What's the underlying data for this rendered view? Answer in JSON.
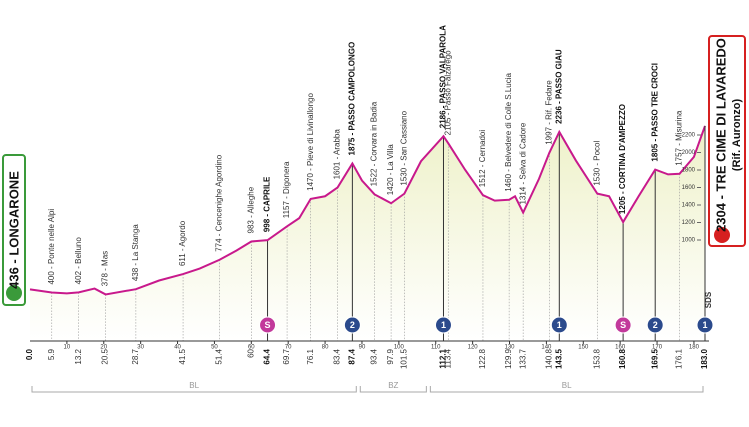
{
  "chart_data": {
    "type": "area",
    "color": "#c8198c",
    "fill": "#eef1c9",
    "xlim": [
      0,
      183
    ],
    "ylim": [
      0,
      2400
    ],
    "x": [
      0,
      5.9,
      10,
      13.2,
      17.5,
      20.5,
      28.7,
      35,
      41.5,
      46,
      51.4,
      56,
      60,
      64.4,
      69.7,
      73,
      76.1,
      80,
      83.4,
      87.4,
      90,
      93.4,
      97.9,
      101.5,
      106,
      112.1,
      113.4,
      118,
      122.8,
      126,
      129.9,
      131.5,
      133.7,
      138,
      140.8,
      143.5,
      148,
      153.8,
      157,
      160.8,
      165,
      169.5,
      173,
      176.1,
      180,
      183
    ],
    "values": [
      436,
      400,
      390,
      402,
      445,
      378,
      438,
      537,
      611,
      674,
      774,
      880,
      983,
      998,
      1157,
      1250,
      1470,
      1500,
      1601,
      1875,
      1680,
      1522,
      1420,
      1530,
      1900,
      2186,
      2105,
      1800,
      1512,
      1450,
      1460,
      1500,
      1314,
      1700,
      1997,
      2236,
      1908,
      1530,
      1500,
      1205,
      1500,
      1805,
      1750,
      1757,
      1950,
      2304
    ],
    "xticks": [
      10,
      20,
      30,
      40,
      50,
      60,
      70,
      80,
      90,
      100,
      110,
      120,
      130,
      140,
      150,
      160,
      170,
      180
    ],
    "yticks": [
      1000,
      1200,
      1400,
      1600,
      1800,
      2000,
      2200
    ],
    "start": {
      "km": {
        "value": 0,
        "label": "0.0"
      },
      "label": "436 - LONGARONE"
    },
    "finish": {
      "km": {
        "value": 183,
        "label": "183.0"
      },
      "label": "2304 - TRE CIME DI LAVAREDO",
      "sublabel": "(Rif. Auronzo)"
    },
    "sds_label": "SDS",
    "waypoints": [
      {
        "km": 5.9,
        "label": "400 - Ponte nelle Alpi",
        "bold": false
      },
      {
        "km": 13.2,
        "label": "402 - Belluno",
        "bold": false
      },
      {
        "km": 20.5,
        "label": "378 - Mas",
        "bold": false
      },
      {
        "km": 28.7,
        "label": "438 - La Stanga",
        "bold": false
      },
      {
        "km": 41.5,
        "label": "611 - Agordo",
        "bold": false
      },
      {
        "km": 51.4,
        "label": "774 - Cencenighe Agordino",
        "bold": false
      },
      {
        "km": 60.0,
        "label": "983 - Alleghe",
        "bold": false
      },
      {
        "km": 64.4,
        "label": "998 - CAPRILE",
        "bold": true
      },
      {
        "km": 69.7,
        "label": "1157 - Digonera",
        "bold": false
      },
      {
        "km": 76.1,
        "label": "1470 - Pieve di Livinallongo",
        "bold": false
      },
      {
        "km": 83.4,
        "label": "1601 - Arabba",
        "bold": false
      },
      {
        "km": 87.4,
        "label": "1875 - PASSO CAMPOLONGO",
        "bold": true
      },
      {
        "km": 93.4,
        "label": "1522 - Corvara in Badia",
        "bold": false
      },
      {
        "km": 97.9,
        "label": "1420 - La Villa",
        "bold": false
      },
      {
        "km": 101.5,
        "label": "1530 - San Cassiano",
        "bold": false
      },
      {
        "km": 112.1,
        "label": "2186 - PASSO VALPAROLA",
        "bold": true
      },
      {
        "km": 113.4,
        "label": "2105 - Passo Falzarego",
        "bold": false
      },
      {
        "km": 122.8,
        "label": "1512 - Cernadoi",
        "bold": false
      },
      {
        "km": 129.9,
        "label": "1460 - Belvedere di Colle S.Lucia",
        "bold": false
      },
      {
        "km": 133.7,
        "label": "1314 - Selva di Cadore",
        "bold": false
      },
      {
        "km": 140.8,
        "label": "1997 - Rif. Fedare",
        "bold": false
      },
      {
        "km": 143.5,
        "label": "2236 - PASSO GIAU",
        "bold": true
      },
      {
        "km": 153.8,
        "label": "1530 - Pocol",
        "bold": false
      },
      {
        "km": 160.8,
        "label": "1205 - CORTINA D'AMPEZZO",
        "bold": true
      },
      {
        "km": 169.5,
        "label": "1805 - PASSO TRE CROCI",
        "bold": true
      },
      {
        "km": 176.1,
        "label": "1757 - Misurina",
        "bold": false
      }
    ],
    "badges": [
      {
        "km": 64.4,
        "label": "S",
        "color": "#c2399b"
      },
      {
        "km": 87.4,
        "label": "2",
        "color": "#2b4a8c"
      },
      {
        "km": 112.1,
        "label": "1",
        "color": "#2b4a8c"
      },
      {
        "km": 143.5,
        "label": "1",
        "color": "#2b4a8c"
      },
      {
        "km": 160.8,
        "label": "S",
        "color": "#c2399b"
      },
      {
        "km": 169.5,
        "label": "2",
        "color": "#2b4a8c"
      },
      {
        "km": 183,
        "label": "1",
        "color": "#2b4a8c"
      }
    ],
    "regions": [
      {
        "label": "BL",
        "from": 0,
        "to": 89
      },
      {
        "label": "BZ",
        "from": 89,
        "to": 108
      },
      {
        "label": "BL",
        "from": 108,
        "to": 183
      }
    ]
  }
}
